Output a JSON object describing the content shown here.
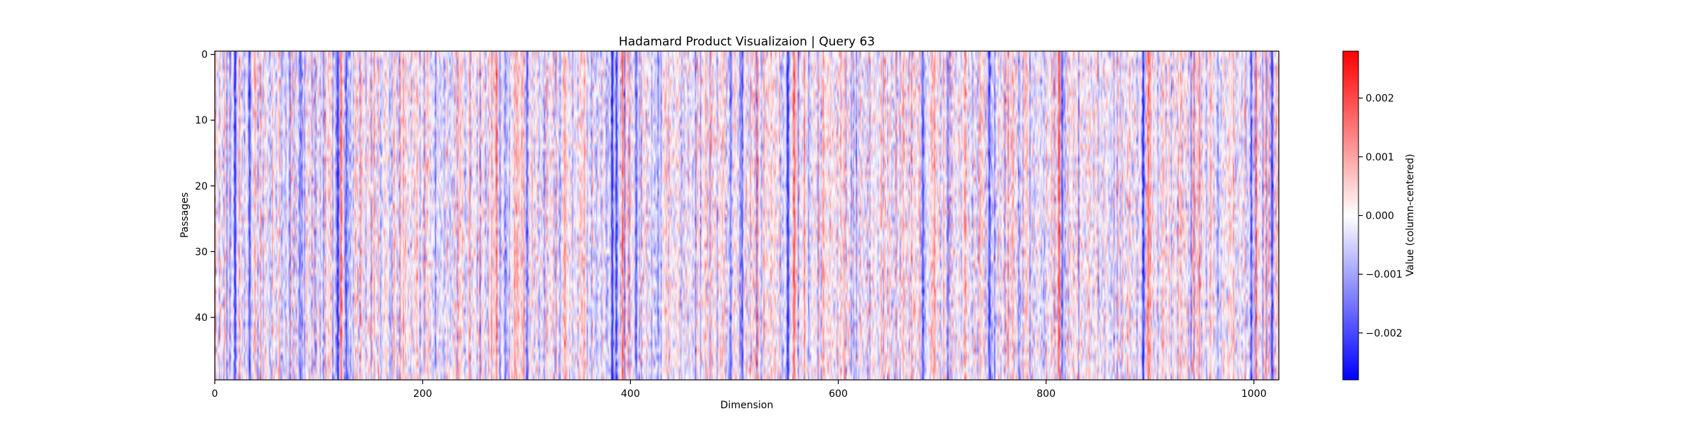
{
  "chart_data": {
    "type": "heatmap",
    "title": "Hadamard Product Visualizaion | Query 63",
    "xlabel": "Dimension",
    "ylabel": "Passages",
    "colorbar_label": "Value (column-centered)",
    "colormap": "bwr",
    "colormap_colors": {
      "low": "#0000ff",
      "mid": "#ffffff",
      "high": "#ff0000"
    },
    "n_rows": 50,
    "n_cols": 1024,
    "xlim": [
      0,
      1024
    ],
    "ylim": [
      0,
      50
    ],
    "clim": [
      -0.0028,
      0.0028
    ],
    "x_ticks": [
      0,
      200,
      400,
      600,
      800,
      1000
    ],
    "x_tick_labels": [
      "0",
      "200",
      "400",
      "600",
      "800",
      "1000"
    ],
    "y_ticks": [
      0,
      10,
      20,
      30,
      40
    ],
    "y_tick_labels": [
      "0",
      "10",
      "20",
      "30",
      "40"
    ],
    "colorbar_ticks": [
      -0.002,
      -0.001,
      0.0,
      0.001,
      0.002
    ],
    "colorbar_tick_labels": [
      "−0.002",
      "−0.001",
      "0.000",
      "0.001",
      "0.002"
    ],
    "dominant_columns": [
      {
        "dim": 19,
        "value": -0.0024
      },
      {
        "dim": 33,
        "value": -0.0022
      },
      {
        "dim": 118,
        "value": -0.0026
      },
      {
        "dim": 121,
        "value": 0.0018
      },
      {
        "dim": 126,
        "value": -0.002
      },
      {
        "dim": 300,
        "value": -0.0018
      },
      {
        "dim": 382,
        "value": -0.0026
      },
      {
        "dim": 386,
        "value": -0.0022
      },
      {
        "dim": 392,
        "value": 0.0016
      },
      {
        "dim": 405,
        "value": -0.0018
      },
      {
        "dim": 496,
        "value": -0.0016
      },
      {
        "dim": 507,
        "value": -0.0018
      },
      {
        "dim": 551,
        "value": -0.0026
      },
      {
        "dim": 557,
        "value": 0.0018
      },
      {
        "dim": 681,
        "value": -0.002
      },
      {
        "dim": 705,
        "value": -0.0016
      },
      {
        "dim": 745,
        "value": -0.0022
      },
      {
        "dim": 812,
        "value": 0.002
      },
      {
        "dim": 815,
        "value": -0.0018
      },
      {
        "dim": 893,
        "value": -0.0024
      },
      {
        "dim": 898,
        "value": 0.0016
      },
      {
        "dim": 997,
        "value": -0.002
      },
      {
        "dim": 1017,
        "value": -0.0022
      }
    ]
  }
}
